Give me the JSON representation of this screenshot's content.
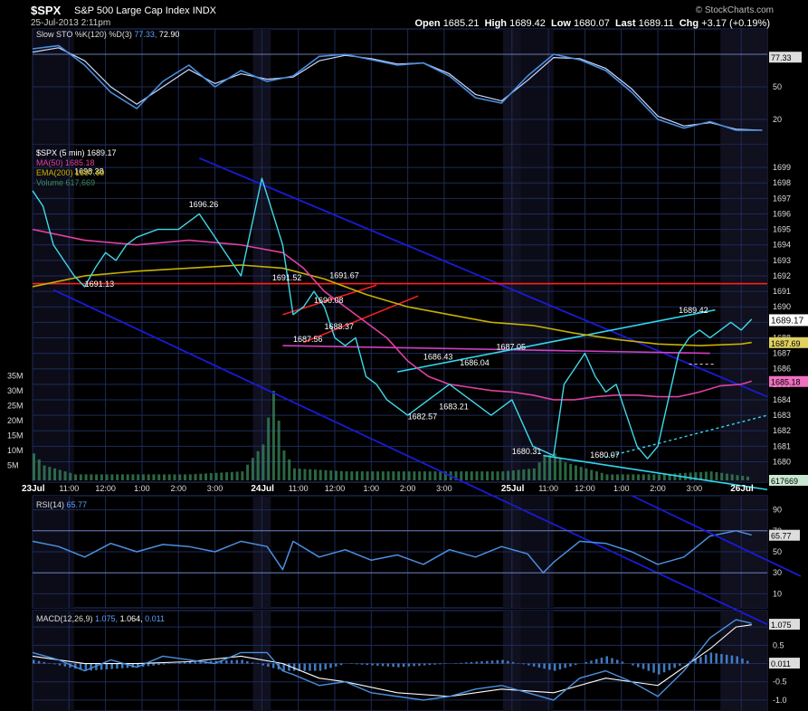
{
  "header": {
    "symbol": "$SPX",
    "name": "S&P 500 Large Cap Index",
    "exchange": "INDX",
    "datetime": "25-Jul-2013 2:11pm",
    "open_label": "Open",
    "open": "1685.21",
    "high_label": "High",
    "high": "1689.42",
    "low_label": "Low",
    "low": "1680.07",
    "last_label": "Last",
    "last": "1689.11",
    "chg_label": "Chg",
    "chg": "+3.17 (+0.19%)",
    "brand": "© StockCharts.com"
  },
  "colors": {
    "price": "#40d8e8",
    "ma50": "#e040a0",
    "ema200": "#c8b000",
    "volume": "#3a8a5a",
    "channel": "#1a1ad8",
    "support": "#ff2020",
    "trend": "#30d8f0",
    "grid": "#1e2a5a"
  },
  "chart_data": [
    {
      "type": "line",
      "panel": "stochastic",
      "title": "Slow STO %K(120) %D(3)",
      "legend": [
        "77.33",
        "72.90"
      ],
      "ylim": [
        0,
        100
      ],
      "yticks": [
        "20",
        "50"
      ],
      "last_value": "77.33",
      "series": [
        {
          "name": "%K",
          "x": [
            0,
            5,
            10,
            15,
            20,
            25,
            30,
            35,
            40,
            45,
            50,
            55,
            60,
            65,
            70,
            75,
            80,
            85,
            90,
            95,
            100,
            105,
            110,
            115,
            120,
            125,
            130,
            135,
            140
          ],
          "values": [
            85,
            88,
            70,
            45,
            30,
            55,
            70,
            50,
            65,
            55,
            60,
            78,
            80,
            75,
            70,
            72,
            60,
            40,
            35,
            60,
            80,
            75,
            65,
            45,
            20,
            12,
            18,
            10,
            10
          ]
        },
        {
          "name": "%D",
          "x": [
            0,
            5,
            10,
            15,
            20,
            25,
            30,
            35,
            40,
            45,
            50,
            55,
            60,
            65,
            70,
            75,
            80,
            85,
            90,
            95,
            100,
            105,
            110,
            115,
            120,
            125,
            130,
            135,
            140
          ],
          "values": [
            82,
            86,
            74,
            50,
            34,
            50,
            66,
            53,
            62,
            57,
            59,
            74,
            79,
            76,
            71,
            72,
            62,
            43,
            37,
            56,
            77,
            76,
            67,
            48,
            23,
            14,
            17,
            11,
            10
          ]
        }
      ]
    },
    {
      "type": "line",
      "panel": "price",
      "title": "$SPX (5 min)",
      "legend": [
        {
          "name": "$SPX (5 min)",
          "value": "1689.17"
        },
        {
          "name": "MA(50)",
          "value": "1685.18"
        },
        {
          "name": "EMA(200)",
          "value": "1687.69"
        },
        {
          "name": "Volume",
          "value": "617,669"
        }
      ],
      "ylim": [
        1679.5,
        1700
      ],
      "yticks": [
        "1680",
        "1681",
        "1682",
        "1683",
        "1684",
        "1685",
        "1686",
        "1687",
        "1688",
        "1689",
        "1690",
        "1691",
        "1692",
        "1693",
        "1694",
        "1695",
        "1696",
        "1697",
        "1698",
        "1699"
      ],
      "last_price_label": "1689.17",
      "ema_label": "1687.69",
      "ma_label": "1685.18",
      "annotations": [
        "1698.38",
        "1696.26",
        "1691.13",
        "1691.52",
        "1691.67",
        "1690.08",
        "1688.37",
        "1687.56",
        "1686.43",
        "1686.04",
        "1687.05",
        "1682.57",
        "1683.21",
        "1680.31",
        "1680.07",
        "1689.42"
      ],
      "xticks": [
        "23Jul",
        "11:00",
        "12:00",
        "1:00",
        "2:00",
        "3:00",
        "24Jul",
        "11:00",
        "12:00",
        "1:00",
        "2:00",
        "3:00",
        "25Jul",
        "11:00",
        "12:00",
        "1:00",
        "2:00",
        "3:00",
        "26Jul"
      ],
      "volume_ticks": [
        "5M",
        "10M",
        "15M",
        "20M",
        "25M",
        "30M",
        "35M"
      ],
      "volume_last": "617669",
      "series": [
        {
          "name": "$SPX",
          "x": [
            0,
            2,
            4,
            6,
            8,
            10,
            12,
            14,
            16,
            18,
            20,
            24,
            28,
            32,
            36,
            40,
            44,
            48,
            50,
            52,
            54,
            56,
            58,
            60,
            62,
            64,
            66,
            68,
            72,
            76,
            80,
            84,
            88,
            92,
            96,
            100,
            102,
            104,
            106,
            108,
            110,
            112,
            114,
            116,
            118,
            120,
            122,
            124,
            126,
            128,
            130,
            132,
            134,
            136,
            138
          ],
          "values": [
            1697.5,
            1696.5,
            1694,
            1693,
            1692,
            1691.3,
            1692.5,
            1693.5,
            1693,
            1694,
            1694.5,
            1695,
            1695,
            1696,
            1694,
            1692,
            1698.3,
            1694,
            1689.5,
            1690,
            1691,
            1690,
            1688,
            1687.5,
            1688,
            1685.5,
            1685,
            1684,
            1683,
            1684,
            1685,
            1684,
            1683,
            1684,
            1681,
            1680.4,
            1685,
            1686,
            1687,
            1685.5,
            1684.5,
            1685,
            1683,
            1681,
            1680.2,
            1681,
            1684,
            1687,
            1688,
            1688.5,
            1688,
            1688.5,
            1689,
            1688.5,
            1689.2
          ]
        },
        {
          "name": "MA(50)",
          "x": [
            0,
            10,
            20,
            30,
            40,
            48,
            52,
            56,
            60,
            64,
            68,
            72,
            76,
            80,
            84,
            88,
            92,
            96,
            100,
            104,
            108,
            112,
            116,
            120,
            124,
            128,
            132,
            136,
            138
          ],
          "values": [
            1695,
            1694.3,
            1694,
            1694.3,
            1694,
            1693.5,
            1692.5,
            1691,
            1690,
            1689,
            1688,
            1686.5,
            1685.5,
            1685,
            1684.8,
            1684.6,
            1684.5,
            1684.3,
            1684,
            1684,
            1684.2,
            1684.3,
            1684.3,
            1684.2,
            1684.2,
            1684.5,
            1684.9,
            1685,
            1685.2
          ]
        },
        {
          "name": "EMA(200)",
          "x": [
            0,
            10,
            20,
            30,
            40,
            48,
            56,
            64,
            72,
            80,
            88,
            96,
            104,
            112,
            120,
            128,
            136,
            138
          ],
          "values": [
            1691.3,
            1692,
            1692.3,
            1692.5,
            1692.7,
            1692.5,
            1691.8,
            1690.8,
            1690,
            1689.5,
            1689,
            1688.8,
            1688.3,
            1687.9,
            1687.6,
            1687.5,
            1687.6,
            1687.7
          ]
        },
        {
          "name": "Volume",
          "x": [
            0,
            2,
            4,
            6,
            8,
            10,
            20,
            30,
            40,
            44,
            46,
            48,
            50,
            60,
            70,
            80,
            90,
            96,
            98,
            100,
            102,
            110,
            120,
            130,
            138
          ],
          "values": [
            9,
            5,
            4,
            3,
            2,
            2,
            2,
            2,
            3,
            12,
            30,
            10,
            4,
            3,
            3,
            3,
            3,
            4,
            8,
            9,
            6,
            2,
            2,
            3,
            1
          ]
        }
      ]
    },
    {
      "type": "line",
      "panel": "rsi",
      "title": "RSI(14)",
      "legend": [
        "65.77"
      ],
      "ylim": [
        0,
        100
      ],
      "yticks": [
        "10",
        "30",
        "50",
        "70",
        "90"
      ],
      "last_value": "65.77",
      "series": [
        {
          "name": "RSI(14)",
          "x": [
            0,
            5,
            10,
            15,
            20,
            25,
            30,
            35,
            40,
            45,
            48,
            50,
            55,
            60,
            65,
            70,
            75,
            80,
            85,
            90,
            95,
            98,
            100,
            105,
            110,
            115,
            120,
            125,
            130,
            135,
            138
          ],
          "values": [
            60,
            55,
            45,
            58,
            50,
            57,
            55,
            50,
            60,
            55,
            33,
            60,
            45,
            52,
            42,
            47,
            38,
            52,
            45,
            55,
            48,
            30,
            40,
            60,
            58,
            50,
            38,
            45,
            65,
            70,
            66
          ]
        }
      ]
    },
    {
      "type": "line",
      "panel": "macd",
      "title": "MACD(12,26,9)",
      "legend": [
        "1.075",
        "1.064",
        "0.011"
      ],
      "ylim": [
        -1.2,
        1.3
      ],
      "yticks": [
        "-1.0",
        "-0.5",
        "0.0",
        "0.5",
        "1.0"
      ],
      "last_value": "1.075",
      "hist_value": "0.011",
      "series": [
        {
          "name": "MACD",
          "x": [
            0,
            5,
            10,
            15,
            20,
            25,
            30,
            35,
            40,
            45,
            48,
            50,
            55,
            60,
            65,
            70,
            75,
            80,
            85,
            90,
            95,
            100,
            105,
            110,
            115,
            120,
            125,
            130,
            135,
            138
          ],
          "values": [
            0.3,
            0.1,
            -0.2,
            0.1,
            -0.1,
            0.2,
            0.1,
            0.0,
            0.3,
            0.3,
            -0.2,
            -0.3,
            -0.6,
            -0.5,
            -0.8,
            -0.9,
            -1.0,
            -0.9,
            -0.7,
            -0.6,
            -0.8,
            -1.0,
            -0.4,
            -0.2,
            -0.5,
            -0.9,
            -0.2,
            0.7,
            1.2,
            1.1
          ]
        },
        {
          "name": "Signal",
          "x": [
            0,
            10,
            20,
            30,
            40,
            48,
            55,
            60,
            70,
            80,
            90,
            100,
            110,
            120,
            130,
            135,
            138
          ],
          "values": [
            0.2,
            0.0,
            0.0,
            0.05,
            0.2,
            0.0,
            -0.4,
            -0.5,
            -0.8,
            -0.9,
            -0.7,
            -0.8,
            -0.4,
            -0.6,
            0.4,
            1.0,
            1.06
          ]
        },
        {
          "name": "Histogram",
          "x": [
            0,
            10,
            20,
            30,
            40,
            48,
            55,
            60,
            70,
            80,
            90,
            100,
            110,
            120,
            130,
            135,
            138
          ],
          "values": [
            0.1,
            -0.2,
            -0.1,
            0.05,
            0.1,
            -0.2,
            -0.2,
            0.0,
            -0.1,
            0.0,
            0.1,
            -0.2,
            0.2,
            -0.3,
            0.3,
            0.2,
            0.01
          ]
        }
      ]
    }
  ]
}
